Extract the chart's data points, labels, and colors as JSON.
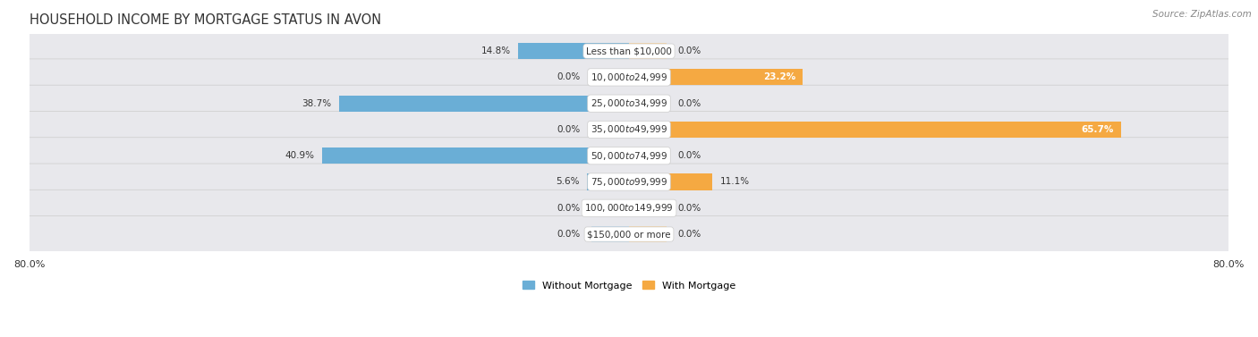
{
  "title": "HOUSEHOLD INCOME BY MORTGAGE STATUS IN AVON",
  "source": "Source: ZipAtlas.com",
  "categories": [
    "Less than $10,000",
    "$10,000 to $24,999",
    "$25,000 to $34,999",
    "$35,000 to $49,999",
    "$50,000 to $74,999",
    "$75,000 to $99,999",
    "$100,000 to $149,999",
    "$150,000 or more"
  ],
  "without_mortgage": [
    14.8,
    0.0,
    38.7,
    0.0,
    40.9,
    5.6,
    0.0,
    0.0
  ],
  "with_mortgage": [
    0.0,
    23.2,
    0.0,
    65.7,
    0.0,
    11.1,
    0.0,
    0.0
  ],
  "blue_color": "#6aaed6",
  "blue_light_color": "#b8d4eb",
  "orange_color": "#f5a942",
  "orange_light_color": "#fad4a0",
  "blue_label": "Without Mortgage",
  "orange_label": "With Mortgage",
  "xlim": 80.0,
  "background_color": "#ffffff",
  "row_bg_color": "#e8e8ec",
  "title_fontsize": 10.5,
  "source_fontsize": 7.5,
  "label_fontsize": 7.5,
  "value_fontsize": 7.5
}
